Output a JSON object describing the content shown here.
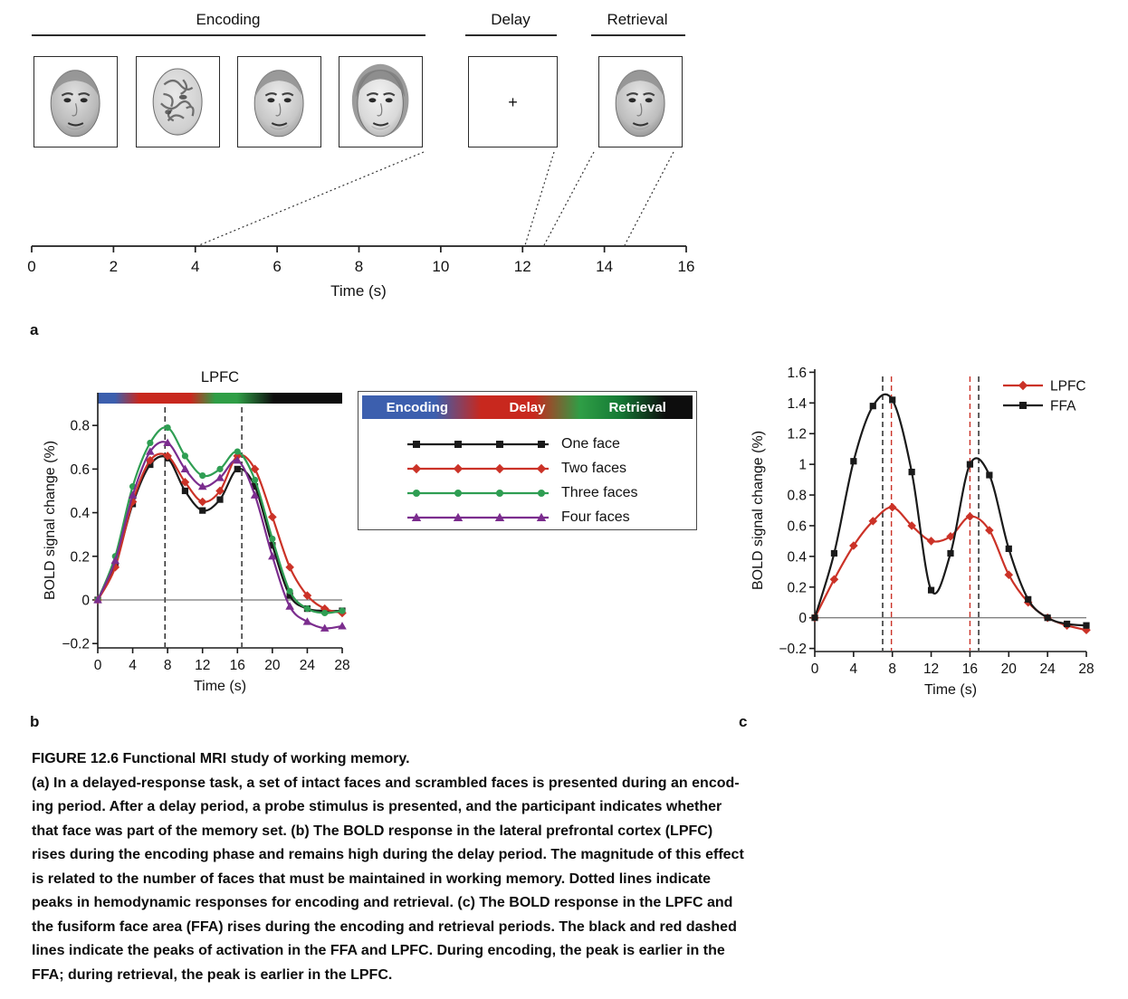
{
  "timeline": {
    "panel_label": "a",
    "phases": [
      {
        "label": "Encoding"
      },
      {
        "label": "Delay"
      },
      {
        "label": "Retrieval"
      }
    ],
    "fixation_cross": "+",
    "axis": {
      "label": "Time (s)",
      "min": 0,
      "max": 16,
      "ticks": [
        0,
        2,
        4,
        6,
        8,
        10,
        12,
        14,
        16
      ]
    }
  },
  "legend_box": {
    "phases": [
      "Encoding",
      "Delay",
      "Retrieval"
    ]
  },
  "chart_data": [
    {
      "id": "lpfc_by_memory_load",
      "type": "line",
      "panel_label": "b",
      "title": "LPFC",
      "xlabel": "Time (s)",
      "ylabel": "BOLD signal change (%)",
      "xlim": [
        0,
        28
      ],
      "ylim": [
        -0.22,
        0.95
      ],
      "xticks": [
        0,
        4,
        8,
        12,
        16,
        20,
        24,
        28
      ],
      "yticks": [
        0.8,
        0.6,
        0.4,
        0.2,
        0,
        -0.2
      ],
      "phase_bar": true,
      "dashed_vlines": [
        {
          "x": 7.7,
          "color": "#222222"
        },
        {
          "x": 16.5,
          "color": "#222222"
        }
      ],
      "x": [
        0,
        2,
        4,
        6,
        8,
        10,
        12,
        14,
        16,
        18,
        20,
        22,
        24,
        26,
        28
      ],
      "series": [
        {
          "name": "One face",
          "color": "#1a1a1a",
          "marker": "square",
          "values": [
            0,
            0.16,
            0.44,
            0.62,
            0.65,
            0.5,
            0.41,
            0.46,
            0.6,
            0.52,
            0.25,
            0.02,
            -0.04,
            -0.05,
            -0.05
          ]
        },
        {
          "name": "Two faces",
          "color": "#cb3227",
          "marker": "diamond",
          "values": [
            0,
            0.15,
            0.45,
            0.64,
            0.66,
            0.54,
            0.45,
            0.5,
            0.66,
            0.6,
            0.38,
            0.15,
            0.02,
            -0.04,
            -0.06
          ]
        },
        {
          "name": "Three faces",
          "color": "#2f9e53",
          "marker": "circle",
          "values": [
            0,
            0.2,
            0.52,
            0.72,
            0.79,
            0.66,
            0.57,
            0.6,
            0.68,
            0.55,
            0.28,
            0.04,
            -0.04,
            -0.06,
            -0.05
          ]
        },
        {
          "name": "Four faces",
          "color": "#7b2d8e",
          "marker": "triangle",
          "values": [
            0,
            0.18,
            0.48,
            0.68,
            0.72,
            0.6,
            0.52,
            0.56,
            0.64,
            0.48,
            0.2,
            -0.03,
            -0.1,
            -0.13,
            -0.12
          ]
        }
      ]
    },
    {
      "id": "lpfc_vs_ffa",
      "type": "line",
      "panel_label": "c",
      "xlabel": "Time (s)",
      "ylabel": "BOLD signal change (%)",
      "xlim": [
        0,
        28
      ],
      "ylim": [
        -0.22,
        1.62
      ],
      "xticks": [
        0,
        4,
        8,
        12,
        16,
        20,
        24,
        28
      ],
      "yticks": [
        1.6,
        1.4,
        1.2,
        1,
        0.8,
        0.6,
        0.4,
        0.2,
        0,
        -0.2
      ],
      "legend": {
        "position": "top-right"
      },
      "dashed_vlines": [
        {
          "x": 7.0,
          "color": "#1a1a1a"
        },
        {
          "x": 7.9,
          "color": "#cb3227"
        },
        {
          "x": 16.0,
          "color": "#cb3227"
        },
        {
          "x": 16.9,
          "color": "#1a1a1a"
        }
      ],
      "x": [
        0,
        2,
        4,
        6,
        8,
        10,
        12,
        14,
        16,
        18,
        20,
        22,
        24,
        26,
        28
      ],
      "series": [
        {
          "name": "LPFC",
          "color": "#cb3227",
          "marker": "diamond",
          "values": [
            0,
            0.25,
            0.47,
            0.63,
            0.72,
            0.6,
            0.5,
            0.53,
            0.66,
            0.57,
            0.28,
            0.1,
            0.0,
            -0.05,
            -0.08
          ]
        },
        {
          "name": "FFA",
          "color": "#1a1a1a",
          "marker": "square",
          "values": [
            0,
            0.42,
            1.02,
            1.38,
            1.42,
            0.95,
            0.18,
            0.42,
            1.0,
            0.93,
            0.45,
            0.12,
            0.0,
            -0.04,
            -0.05
          ]
        }
      ]
    }
  ],
  "caption": {
    "lines": [
      "FIGURE 12.6  Functional MRI study of working memory.",
      "(a) In a delayed-response task, a set of intact faces and scrambled faces is presented during an encod-",
      "ing period. After a delay period, a probe stimulus is presented, and the participant indicates whether",
      "that face was part of the memory set. (b) The BOLD response in the lateral prefrontal cortex (LPFC)",
      "rises during the encoding phase and remains high during the delay period. The magnitude of this effect",
      "is related to the number of faces that must be maintained in working memory. Dotted lines indicate",
      "peaks in hemodynamic responses for encoding and retrieval. (c) The BOLD response in the LPFC and",
      "the fusiform face area (FFA) rises during the encoding and retrieval periods. The black and red dashed",
      "lines indicate the peaks of activation in the FFA and LPFC. During encoding, the peak is earlier in the",
      "FFA; during retrieval, the peak is earlier in the LPFC."
    ]
  }
}
